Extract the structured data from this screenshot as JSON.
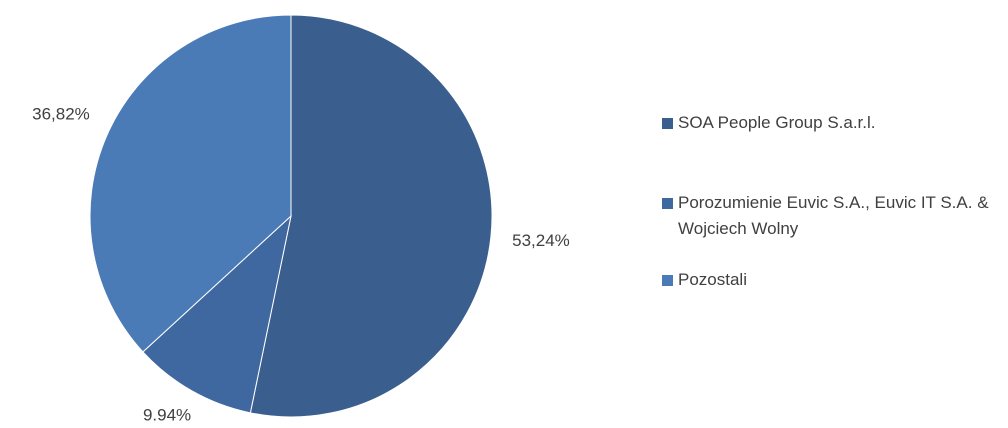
{
  "chart_data": {
    "type": "pie",
    "categories": [
      "SOA People Group S.a.r.l.",
      "Porozumienie Euvic S.A., Euvic IT S.A. & Wojciech Wolny",
      "Pozostali"
    ],
    "values": [
      53.24,
      9.94,
      36.82
    ],
    "value_labels": [
      "53,24%",
      "9.94%",
      "36,82%"
    ],
    "colors": [
      "#3a5f8e",
      "#3f68a0",
      "#4a7bb7"
    ],
    "legend": "right"
  }
}
